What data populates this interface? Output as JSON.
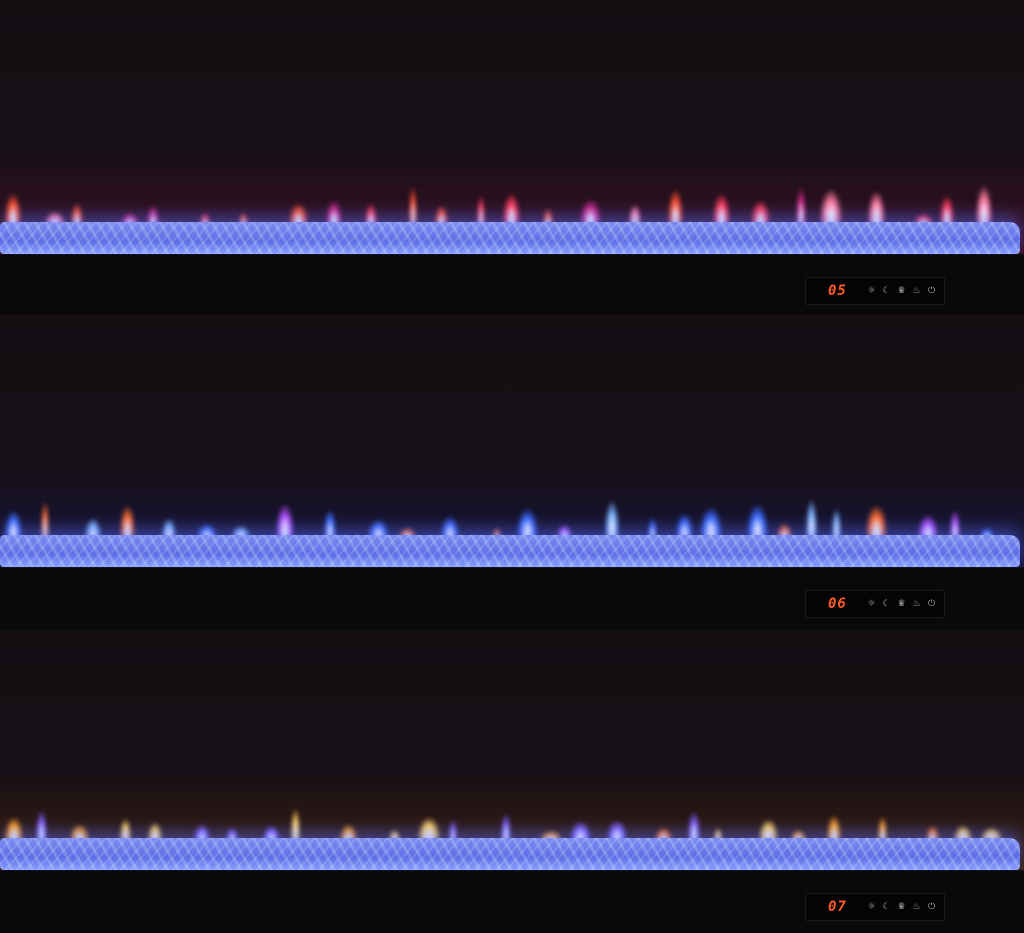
{
  "panels": [
    {
      "display": "05",
      "flame_colors": [
        "#ff3a5a",
        "#ff7aa0",
        "#d02a8a",
        "#ff5030"
      ],
      "glow": "#a02060"
    },
    {
      "display": "06",
      "flame_colors": [
        "#3a6aff",
        "#7ab0ff",
        "#ff6a30",
        "#b050ff"
      ],
      "glow": "#2a30b0"
    },
    {
      "display": "07",
      "flame_colors": [
        "#ffa020",
        "#ffd060",
        "#ff7a20",
        "#8060ff"
      ],
      "glow": "#a05020"
    }
  ],
  "control_icons": [
    "brightness-icon",
    "moon-icon",
    "crown-icon",
    "flame-icon",
    "power-icon"
  ],
  "icon_glyphs": [
    "☼",
    "☾",
    "♛",
    "♨",
    "⏻"
  ]
}
